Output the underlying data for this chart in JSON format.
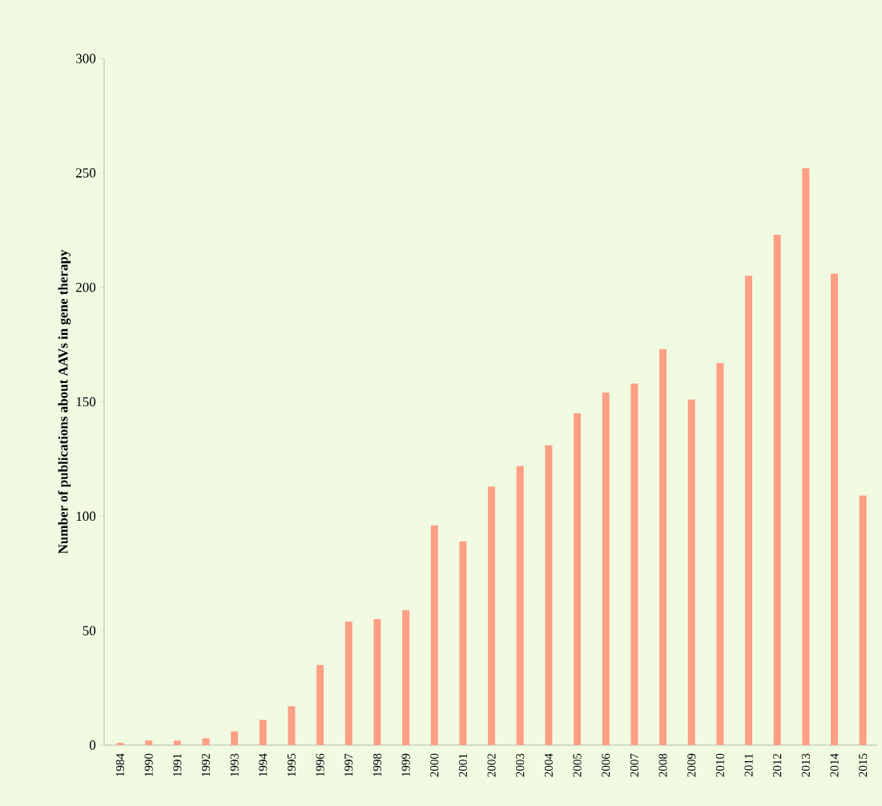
{
  "chart_data": {
    "type": "bar",
    "ylabel": "Number of publications about AAVs in gene therapy",
    "categories": [
      "1984",
      "1990",
      "1991",
      "1992",
      "1993",
      "1994",
      "1995",
      "1996",
      "1997",
      "1998",
      "1999",
      "2000",
      "2001",
      "2002",
      "2003",
      "2004",
      "2005",
      "2006",
      "2007",
      "2008",
      "2009",
      "2010",
      "2011",
      "2012",
      "2013",
      "2014",
      "2015"
    ],
    "values": [
      1,
      2,
      2,
      3,
      6,
      11,
      17,
      35,
      54,
      55,
      59,
      96,
      89,
      113,
      122,
      131,
      145,
      154,
      158,
      173,
      151,
      167,
      205,
      223,
      252,
      206,
      109
    ],
    "color": "#ff9f85",
    "ylim": [
      0,
      300
    ],
    "yticks": [
      0,
      50,
      100,
      150,
      200,
      250,
      300
    ],
    "grid": false
  }
}
